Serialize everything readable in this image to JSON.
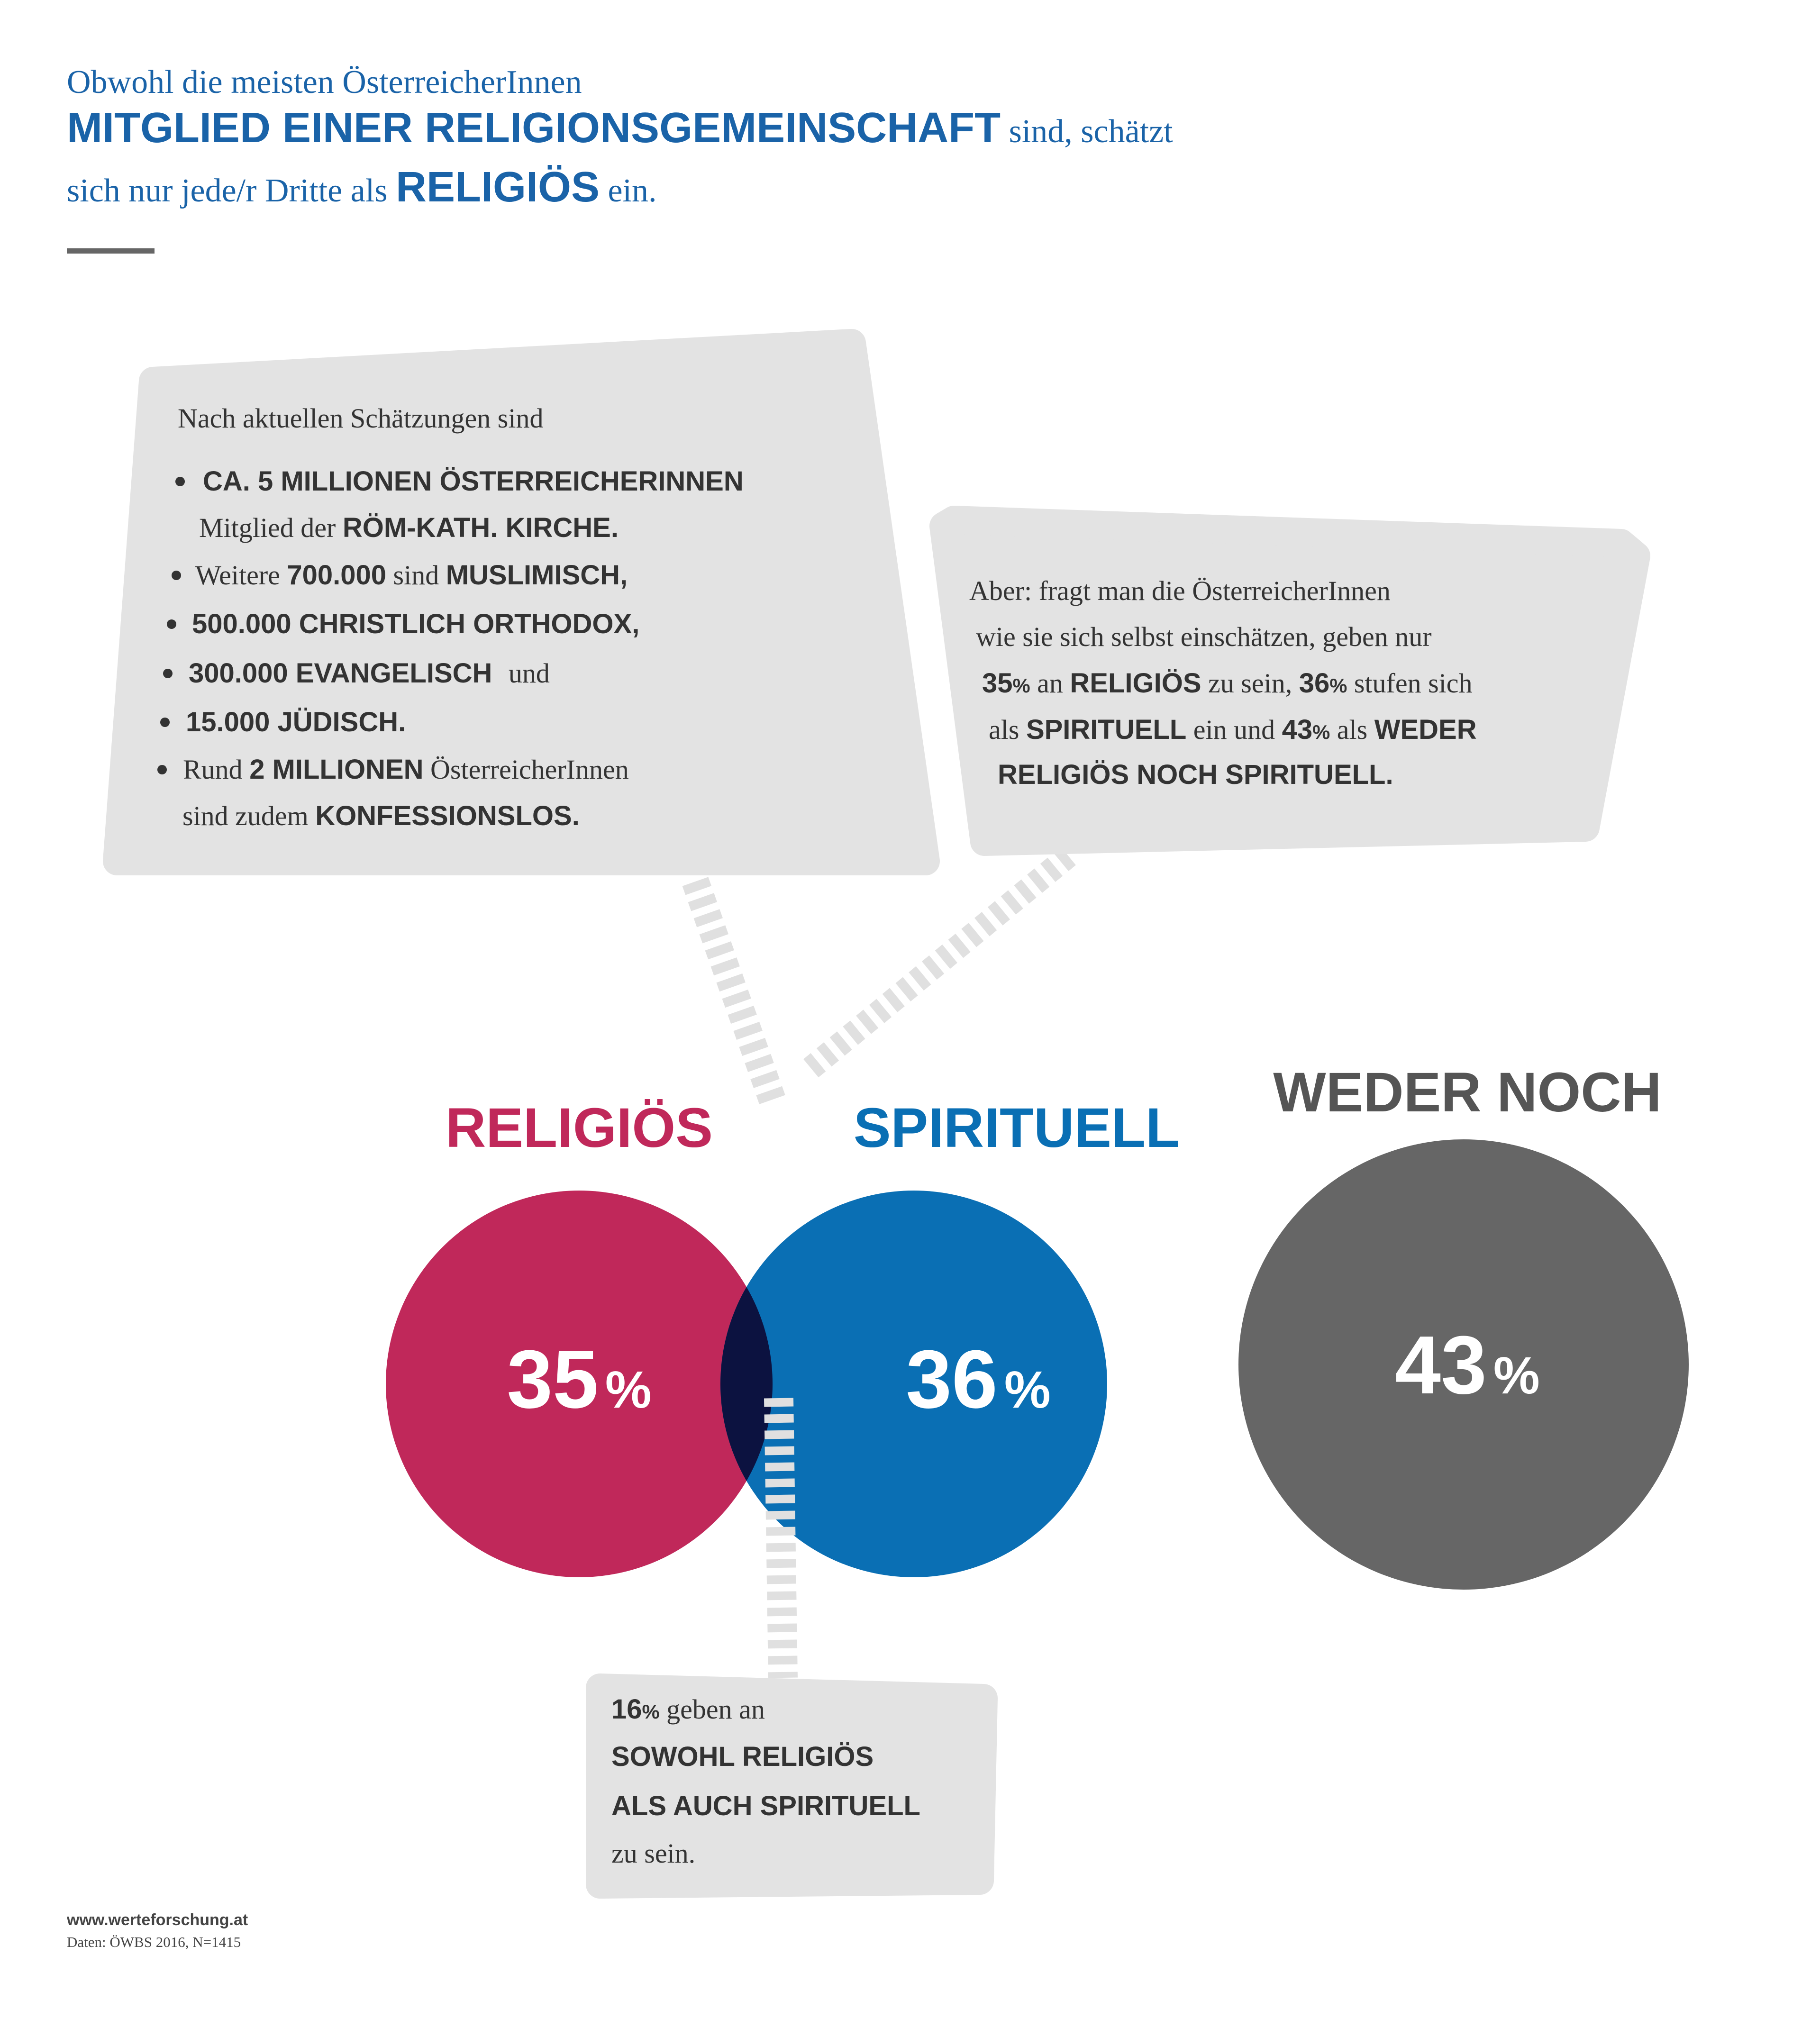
{
  "header": {
    "lines": [
      [
        "Obwohl die meisten ÖsterreicherInnen"
      ],
      [
        "MITGLIED EINER RELIGIONSGEMEINSCHAFT",
        "sind, schätzt"
      ],
      [
        "sich nur jede/r Dritte als",
        "RELIGIÖS",
        "ein."
      ]
    ]
  },
  "callout_members": {
    "intro": "Nach aktuellen Schätzungen sind",
    "lines": [
      [
        "CA. 5 MILLIONEN ÖSTERREICHERINNEN"
      ],
      [
        "Mitglied der",
        "RÖM-KATH. KIRCHE."
      ],
      [
        "Weitere",
        "700.000",
        "sind",
        "MUSLIMISCH,"
      ],
      [
        "500.000 CHRISTLICH ORTHODOX,"
      ],
      [
        "300.000 EVANGELISCH",
        "und"
      ],
      [
        "15.000 JÜDISCH."
      ],
      [
        "Rund",
        "2 MILLIONEN",
        "ÖsterreicherInnen"
      ],
      [
        "sind zudem",
        "KONFESSIONSLOS."
      ]
    ]
  },
  "callout_self": {
    "lines": [
      [
        "Aber: fragt man die ÖsterreicherInnen"
      ],
      [
        "wie sie sich selbst einschätzen, geben nur"
      ],
      [
        "35",
        "%",
        "an",
        "RELIGIÖS",
        "zu sein,",
        "36",
        "%",
        "stufen sich"
      ],
      [
        "als",
        "SPIRITUELL",
        "ein und",
        "43",
        "%",
        "als",
        "WEDER"
      ],
      [
        "RELIGIÖS NOCH SPIRITUELL."
      ]
    ]
  },
  "circles": [
    {
      "label": "RELIGIÖS",
      "value": 35,
      "unit": "%"
    },
    {
      "label": "SPIRITUELL",
      "value": 36,
      "unit": "%"
    },
    {
      "label": "WEDER NOCH",
      "value": 43,
      "unit": "%"
    }
  ],
  "callout_both": {
    "lines": [
      [
        "16",
        "%",
        "geben an"
      ],
      [
        "SOWOHL RELIGIÖS"
      ],
      [
        "ALS AUCH SPIRITUELL"
      ],
      [
        "zu sein."
      ]
    ]
  },
  "footer": {
    "url": "www.werteforschung.at",
    "source": "Daten: ÖWBS 2016, N=1415"
  }
}
